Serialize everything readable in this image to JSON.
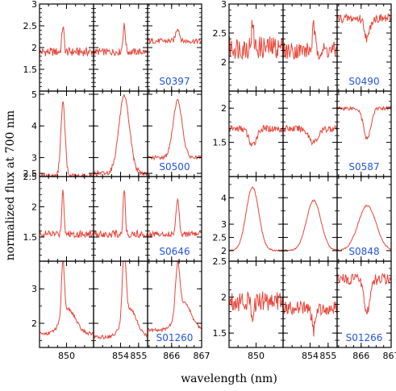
{
  "colors": {
    "line": "#e8463a",
    "label": "#2255dd",
    "axis": "#000000"
  },
  "ylabel": "normalized flux at 700 nm",
  "xlabel": "wavelength (nm)",
  "chart_data": {
    "type": "line",
    "panel_columns": [
      {
        "xlim": [
          848.5,
          851.5
        ],
        "tick_values": [
          850
        ],
        "tick_labels": [
          "850"
        ]
      },
      {
        "xlim": [
          852.5,
          855.5
        ],
        "tick_values": [
          854,
          855
        ],
        "tick_labels": [
          "854",
          "855"
        ]
      },
      {
        "xlim": [
          865.2,
          867.0
        ],
        "tick_values": [
          866,
          867
        ],
        "tick_labels": [
          "866",
          "867"
        ]
      }
    ],
    "objects": [
      {
        "label": "S0397",
        "ylim": [
          1.0,
          3.0
        ],
        "yticks": [
          1.5,
          2,
          2.5,
          3
        ],
        "ytick_labels": [
          "1.5",
          "2",
          "2.5",
          "3"
        ],
        "series": [
          {
            "base": 1.9,
            "noise": 0.1,
            "lines": [
              {
                "c": 849.8,
                "a": 0.6,
                "w": 0.06
              }
            ]
          },
          {
            "base": 1.9,
            "noise": 0.08,
            "lines": [
              {
                "c": 854.2,
                "a": 0.6,
                "w": 0.07
              }
            ]
          },
          {
            "base": 2.15,
            "noise": 0.06,
            "lines": [
              {
                "c": 866.2,
                "a": 0.3,
                "w": 0.06
              }
            ]
          }
        ]
      },
      {
        "label": "S0490",
        "ylim": [
          1.5,
          3.0
        ],
        "yticks": [
          2,
          2.5,
          3
        ],
        "ytick_labels": [
          "2",
          "2.5",
          "3"
        ],
        "series": [
          {
            "base": 2.25,
            "noise": 0.2,
            "lines": [
              {
                "c": 849.8,
                "a": 0.35,
                "w": 0.07
              }
            ]
          },
          {
            "base": 2.2,
            "noise": 0.15,
            "lines": [
              {
                "c": 854.2,
                "a": 0.4,
                "w": 0.07
              }
            ]
          },
          {
            "base": 2.75,
            "noise": 0.08,
            "lines": [
              {
                "c": 866.2,
                "a": -0.35,
                "w": 0.08
              }
            ]
          }
        ]
      },
      {
        "label": "S0500",
        "ylim": [
          2.4,
          5.1
        ],
        "yticks": [
          2.5,
          3,
          4,
          5
        ],
        "ytick_labels": [
          "2.5",
          "3",
          "4",
          "5"
        ],
        "series": [
          {
            "base": 2.4,
            "noise": 0.1,
            "lines": [
              {
                "c": 849.8,
                "a": 2.3,
                "w": 0.12
              }
            ]
          },
          {
            "base": 2.5,
            "noise": 0.08,
            "lines": [
              {
                "c": 854.2,
                "a": 2.4,
                "w": 0.3
              }
            ]
          },
          {
            "base": 3.0,
            "noise": 0.06,
            "lines": [
              {
                "c": 866.2,
                "a": 1.8,
                "w": 0.15
              }
            ]
          }
        ]
      },
      {
        "label": "S0587",
        "ylim": [
          1.0,
          2.25
        ],
        "yticks": [
          1.5,
          2
        ],
        "ytick_labels": [
          "1.5",
          "2"
        ],
        "series": [
          {
            "base": 1.7,
            "noise": 0.05,
            "lines": [
              {
                "c": 849.8,
                "a": -0.25,
                "w": 0.2
              }
            ]
          },
          {
            "base": 1.7,
            "noise": 0.05,
            "lines": [
              {
                "c": 854.2,
                "a": -0.2,
                "w": 0.25
              }
            ]
          },
          {
            "base": 2.0,
            "noise": 0.03,
            "lines": [
              {
                "c": 866.2,
                "a": -0.45,
                "w": 0.12
              }
            ]
          }
        ]
      },
      {
        "label": "S0646",
        "ylim": [
          1.1,
          2.5
        ],
        "yticks": [
          1.5,
          2,
          2.5
        ],
        "ytick_labels": [
          "1.5",
          "2",
          "2.5"
        ],
        "series": [
          {
            "base": 1.55,
            "noise": 0.06,
            "lines": [
              {
                "c": 849.8,
                "a": 0.75,
                "w": 0.06
              }
            ]
          },
          {
            "base": 1.55,
            "noise": 0.06,
            "lines": [
              {
                "c": 854.2,
                "a": 0.75,
                "w": 0.06
              }
            ]
          },
          {
            "base": 1.55,
            "noise": 0.05,
            "lines": [
              {
                "c": 866.2,
                "a": 0.6,
                "w": 0.05
              }
            ]
          }
        ]
      },
      {
        "label": "S0848",
        "ylim": [
          1.6,
          4.8
        ],
        "yticks": [
          2,
          2.5,
          3,
          4
        ],
        "ytick_labels": [
          "2",
          "2.5",
          "3",
          "4"
        ],
        "series": [
          {
            "base": 2.0,
            "noise": 0.03,
            "lines": [
              {
                "c": 849.8,
                "a": 2.4,
                "w": 0.35
              }
            ]
          },
          {
            "base": 2.0,
            "noise": 0.03,
            "lines": [
              {
                "c": 854.2,
                "a": 1.9,
                "w": 0.4
              }
            ]
          },
          {
            "base": 2.0,
            "noise": 0.03,
            "lines": [
              {
                "c": 866.2,
                "a": 1.7,
                "w": 0.3
              }
            ]
          }
        ]
      },
      {
        "label": "S01260",
        "ylim": [
          1.3,
          3.8
        ],
        "yticks": [
          2,
          3
        ],
        "ytick_labels": [
          "2",
          "3"
        ],
        "series": [
          {
            "base": 1.7,
            "noise": 0.05,
            "lines": [
              {
                "c": 849.8,
                "a": 1.6,
                "w": 0.08
              },
              {
                "c": 850.1,
                "a": 0.7,
                "w": 0.4
              }
            ]
          },
          {
            "base": 1.6,
            "noise": 0.05,
            "lines": [
              {
                "c": 854.2,
                "a": 2.0,
                "w": 0.1
              },
              {
                "c": 854.5,
                "a": 0.8,
                "w": 0.4
              }
            ]
          },
          {
            "base": 1.8,
            "noise": 0.05,
            "lines": [
              {
                "c": 866.2,
                "a": 1.4,
                "w": 0.07
              },
              {
                "c": 866.4,
                "a": 0.8,
                "w": 0.25
              }
            ]
          }
        ]
      },
      {
        "label": "S01266",
        "ylim": [
          1.3,
          2.5
        ],
        "yticks": [
          1.5,
          2,
          2.5
        ],
        "ytick_labels": [
          "1.5",
          "2",
          "2.5"
        ],
        "series": [
          {
            "base": 1.95,
            "noise": 0.15,
            "lines": [
              {
                "c": 849.8,
                "a": -0.15,
                "w": 0.1
              }
            ]
          },
          {
            "base": 1.85,
            "noise": 0.1,
            "lines": [
              {
                "c": 854.2,
                "a": -0.3,
                "w": 0.1
              }
            ]
          },
          {
            "base": 2.25,
            "noise": 0.08,
            "lines": [
              {
                "c": 866.2,
                "a": -0.45,
                "w": 0.1
              }
            ]
          }
        ]
      }
    ]
  }
}
